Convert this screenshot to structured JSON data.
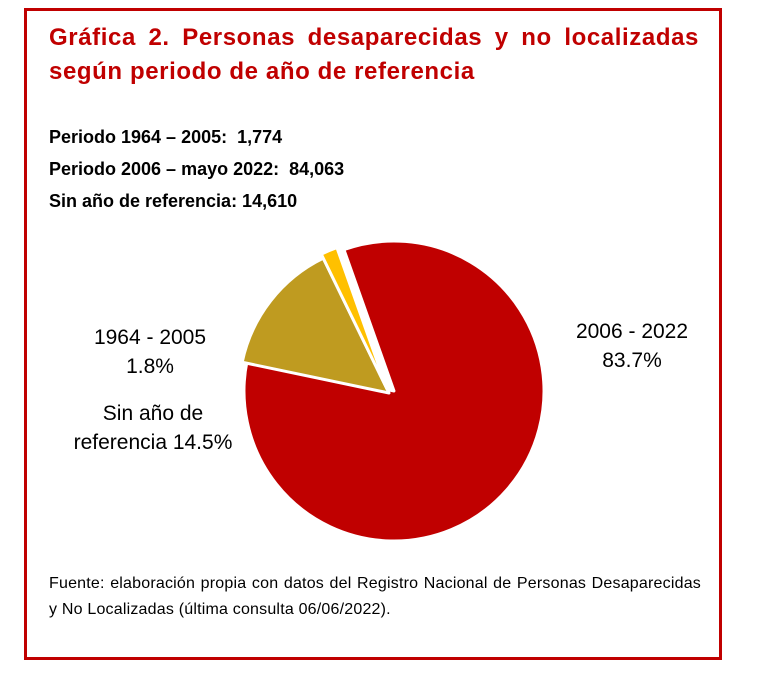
{
  "title": "Gráfica 2. Personas desaparecidas y no localizadas según periodo de año de referencia",
  "stats": [
    "Periodo 1964 – 2005:  1,774",
    "Periodo 2006 – mayo 2022:  84,063",
    "Sin año de referencia: 14,610"
  ],
  "source": "Fuente: elaboración propia con datos del Registro Nacional de Personas Desaparecidas y No Localizadas (última consulta 06/06/2022).",
  "chart_data": {
    "type": "pie",
    "title": "",
    "slices": [
      {
        "name": "2006 - 2022",
        "value": 83.7,
        "label_lines": [
          "2006 - 2022",
          "83.7%"
        ],
        "color": "#c00000"
      },
      {
        "name": "Sin año de referencia",
        "value": 14.5,
        "label_lines": [
          "Sin año de",
          "referencia 14.5%"
        ],
        "color": "#bf9b20"
      },
      {
        "name": "1964 - 2005",
        "value": 1.8,
        "label_lines": [
          "1964 - 2005",
          "1.8%"
        ],
        "color": "#ffc000"
      }
    ]
  }
}
